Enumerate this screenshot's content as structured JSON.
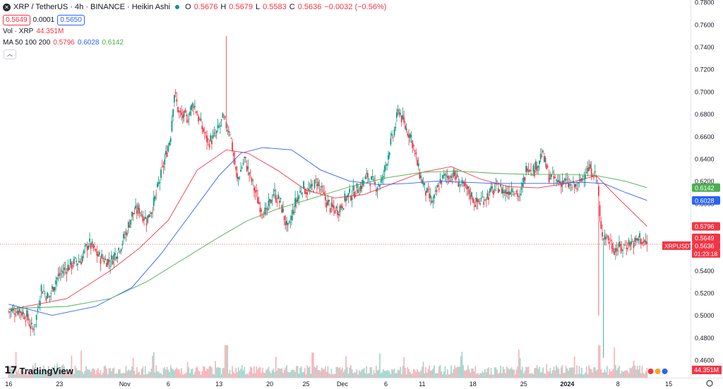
{
  "header": {
    "symbol_icon": "xrp-logo-icon",
    "title": "XRP / TetherUS · 4h · BINANCE · Heikin Ashi",
    "ohlc": {
      "o_label": "O",
      "o": "0.5676",
      "h_label": "H",
      "h": "0.5679",
      "l_label": "L",
      "l": "0.5583",
      "c_label": "C",
      "c": "0.5636",
      "change": "−0.0032 (−0.56%)"
    },
    "bid": "0.5649",
    "spread": "0.0001",
    "ask": "0.5650",
    "vol_label": "Vol · XRP",
    "vol_value": "44.351M",
    "ma_label": "MA 50 100 200",
    "ma50": "0.5796",
    "ma100": "0.6028",
    "ma200": "0.6142"
  },
  "brand": "TradingView",
  "price_tag": {
    "symbol": "XRPUSDT",
    "price": "0.5636",
    "countdown": "01:23:18"
  },
  "colors": {
    "up": "#089981",
    "down": "#f23645",
    "ma50": "#f23645",
    "ma100": "#2962ff",
    "ma200": "#4caf50",
    "up_vol": "#a7d8cf",
    "down_vol": "#f7b7bd"
  },
  "chart_data": {
    "type": "candlestick",
    "y_ticks": [
      0.46,
      0.48,
      0.5,
      0.52,
      0.54,
      0.56,
      0.58,
      0.6,
      0.62,
      0.64,
      0.66,
      0.68,
      0.7,
      0.72,
      0.74,
      0.76,
      0.78
    ],
    "ylim": [
      0.455,
      0.782
    ],
    "x_ticks": [
      "16",
      "23",
      "Nov",
      "6",
      "13",
      "20",
      "25",
      "Dec",
      "6",
      "11",
      "18",
      "25",
      "2024",
      "8",
      "15"
    ],
    "x_tick_positions_days": [
      0,
      7,
      16,
      22,
      29,
      36,
      41,
      46,
      52,
      57,
      64,
      71,
      77,
      84,
      91
    ],
    "x_range_days": [
      -1.2,
      94
    ],
    "price_key_points": [
      [
        0,
        0.5035
      ],
      [
        1.5,
        0.505
      ],
      [
        2.5,
        0.499
      ],
      [
        3.3,
        0.486
      ],
      [
        3.8,
        0.498
      ],
      [
        4.5,
        0.525
      ],
      [
        5.5,
        0.515
      ],
      [
        6.5,
        0.532
      ],
      [
        7.5,
        0.54
      ],
      [
        8.5,
        0.545
      ],
      [
        10,
        0.55
      ],
      [
        11,
        0.565
      ],
      [
        12.5,
        0.552
      ],
      [
        14,
        0.548
      ],
      [
        15,
        0.558
      ],
      [
        16,
        0.57
      ],
      [
        17,
        0.59
      ],
      [
        18,
        0.595
      ],
      [
        19,
        0.585
      ],
      [
        20,
        0.6
      ],
      [
        21,
        0.625
      ],
      [
        22.3,
        0.66
      ],
      [
        22.8,
        0.7
      ],
      [
        23.5,
        0.68
      ],
      [
        24.5,
        0.675
      ],
      [
        25.5,
        0.69
      ],
      [
        26.5,
        0.67
      ],
      [
        27.5,
        0.655
      ],
      [
        28.5,
        0.66
      ],
      [
        29.5,
        0.675
      ],
      [
        30.5,
        0.665
      ],
      [
        31.5,
        0.62
      ],
      [
        32.5,
        0.64
      ],
      [
        33.5,
        0.62
      ],
      [
        34.5,
        0.6
      ],
      [
        35.5,
        0.59
      ],
      [
        36.5,
        0.61
      ],
      [
        37.5,
        0.6
      ],
      [
        38.5,
        0.575
      ],
      [
        39.5,
        0.6
      ],
      [
        40.5,
        0.615
      ],
      [
        41.5,
        0.61
      ],
      [
        42.5,
        0.62
      ],
      [
        43.5,
        0.605
      ],
      [
        44.5,
        0.595
      ],
      [
        45.5,
        0.595
      ],
      [
        46.5,
        0.605
      ],
      [
        47.5,
        0.61
      ],
      [
        48.5,
        0.615
      ],
      [
        49.5,
        0.625
      ],
      [
        50.5,
        0.615
      ],
      [
        51.5,
        0.62
      ],
      [
        52.5,
        0.65
      ],
      [
        53,
        0.66
      ],
      [
        53.8,
        0.685
      ],
      [
        54.5,
        0.67
      ],
      [
        55.5,
        0.66
      ],
      [
        56.5,
        0.63
      ],
      [
        57.5,
        0.61
      ],
      [
        58.5,
        0.6
      ],
      [
        59.5,
        0.62
      ],
      [
        60.5,
        0.625
      ],
      [
        61.5,
        0.625
      ],
      [
        62.5,
        0.615
      ],
      [
        63.5,
        0.61
      ],
      [
        64.5,
        0.6
      ],
      [
        65.5,
        0.605
      ],
      [
        66.5,
        0.61
      ],
      [
        67.5,
        0.615
      ],
      [
        68.5,
        0.61
      ],
      [
        69.5,
        0.615
      ],
      [
        70.5,
        0.605
      ],
      [
        71.5,
        0.635
      ],
      [
        72.5,
        0.63
      ],
      [
        73.5,
        0.645
      ],
      [
        74.5,
        0.625
      ],
      [
        75.5,
        0.62
      ],
      [
        76.5,
        0.62
      ],
      [
        77.5,
        0.615
      ],
      [
        78.5,
        0.615
      ],
      [
        79.5,
        0.63
      ],
      [
        80.5,
        0.63
      ],
      [
        81.2,
        0.62
      ],
      [
        81.6,
        0.575
      ],
      [
        82.5,
        0.57
      ],
      [
        83.5,
        0.56
      ],
      [
        84.5,
        0.56
      ],
      [
        85.5,
        0.565
      ],
      [
        86.5,
        0.565
      ],
      [
        87,
        0.57
      ],
      [
        87.5,
        0.565
      ],
      [
        88,
        0.5636
      ]
    ],
    "wick_spikes": [
      [
        30.0,
        0.75
      ],
      [
        81.4,
        0.5
      ],
      [
        82.0,
        0.462
      ]
    ],
    "volume_max_ratio_note": "volume shown as bars in lower band",
    "ma_series": {
      "ma50": [
        [
          0,
          0.505
        ],
        [
          8,
          0.515
        ],
        [
          14,
          0.54
        ],
        [
          18,
          0.56
        ],
        [
          22,
          0.585
        ],
        [
          26,
          0.63
        ],
        [
          30,
          0.648
        ],
        [
          33,
          0.645
        ],
        [
          37,
          0.63
        ],
        [
          41,
          0.612
        ],
        [
          45,
          0.605
        ],
        [
          49,
          0.608
        ],
        [
          53,
          0.618
        ],
        [
          57,
          0.628
        ],
        [
          61,
          0.633
        ],
        [
          65,
          0.622
        ],
        [
          69,
          0.615
        ],
        [
          73,
          0.614
        ],
        [
          77,
          0.618
        ],
        [
          81,
          0.625
        ],
        [
          84,
          0.605
        ],
        [
          88,
          0.5796
        ]
      ],
      "ma100": [
        [
          0,
          0.51
        ],
        [
          6,
          0.5
        ],
        [
          12,
          0.508
        ],
        [
          17,
          0.525
        ],
        [
          21,
          0.555
        ],
        [
          25,
          0.59
        ],
        [
          29,
          0.625
        ],
        [
          32,
          0.645
        ],
        [
          35,
          0.65
        ],
        [
          39,
          0.648
        ],
        [
          43,
          0.63
        ],
        [
          47,
          0.62
        ],
        [
          51,
          0.617
        ],
        [
          55,
          0.618
        ],
        [
          59,
          0.62
        ],
        [
          63,
          0.619
        ],
        [
          67,
          0.618
        ],
        [
          71,
          0.618
        ],
        [
          75,
          0.618
        ],
        [
          79,
          0.619
        ],
        [
          82,
          0.618
        ],
        [
          85,
          0.61
        ],
        [
          88,
          0.6028
        ]
      ],
      "ma200": [
        [
          0,
          0.506
        ],
        [
          8,
          0.508
        ],
        [
          14,
          0.515
        ],
        [
          19,
          0.53
        ],
        [
          24,
          0.55
        ],
        [
          29,
          0.57
        ],
        [
          33,
          0.585
        ],
        [
          37,
          0.595
        ],
        [
          42,
          0.605
        ],
        [
          47,
          0.615
        ],
        [
          52,
          0.623
        ],
        [
          57,
          0.628
        ],
        [
          62,
          0.629
        ],
        [
          67,
          0.627
        ],
        [
          72,
          0.626
        ],
        [
          77,
          0.626
        ],
        [
          81,
          0.625
        ],
        [
          85,
          0.62
        ],
        [
          88,
          0.6142
        ]
      ]
    },
    "markers": [
      {
        "label": "0.6142",
        "series": "ma200"
      },
      {
        "label": "0.6028",
        "series": "ma100"
      },
      {
        "label": "0.5796",
        "series": "ma50"
      },
      {
        "label": "0.5649",
        "series": "bid"
      },
      {
        "label": "0.5636",
        "series": "last"
      }
    ]
  }
}
